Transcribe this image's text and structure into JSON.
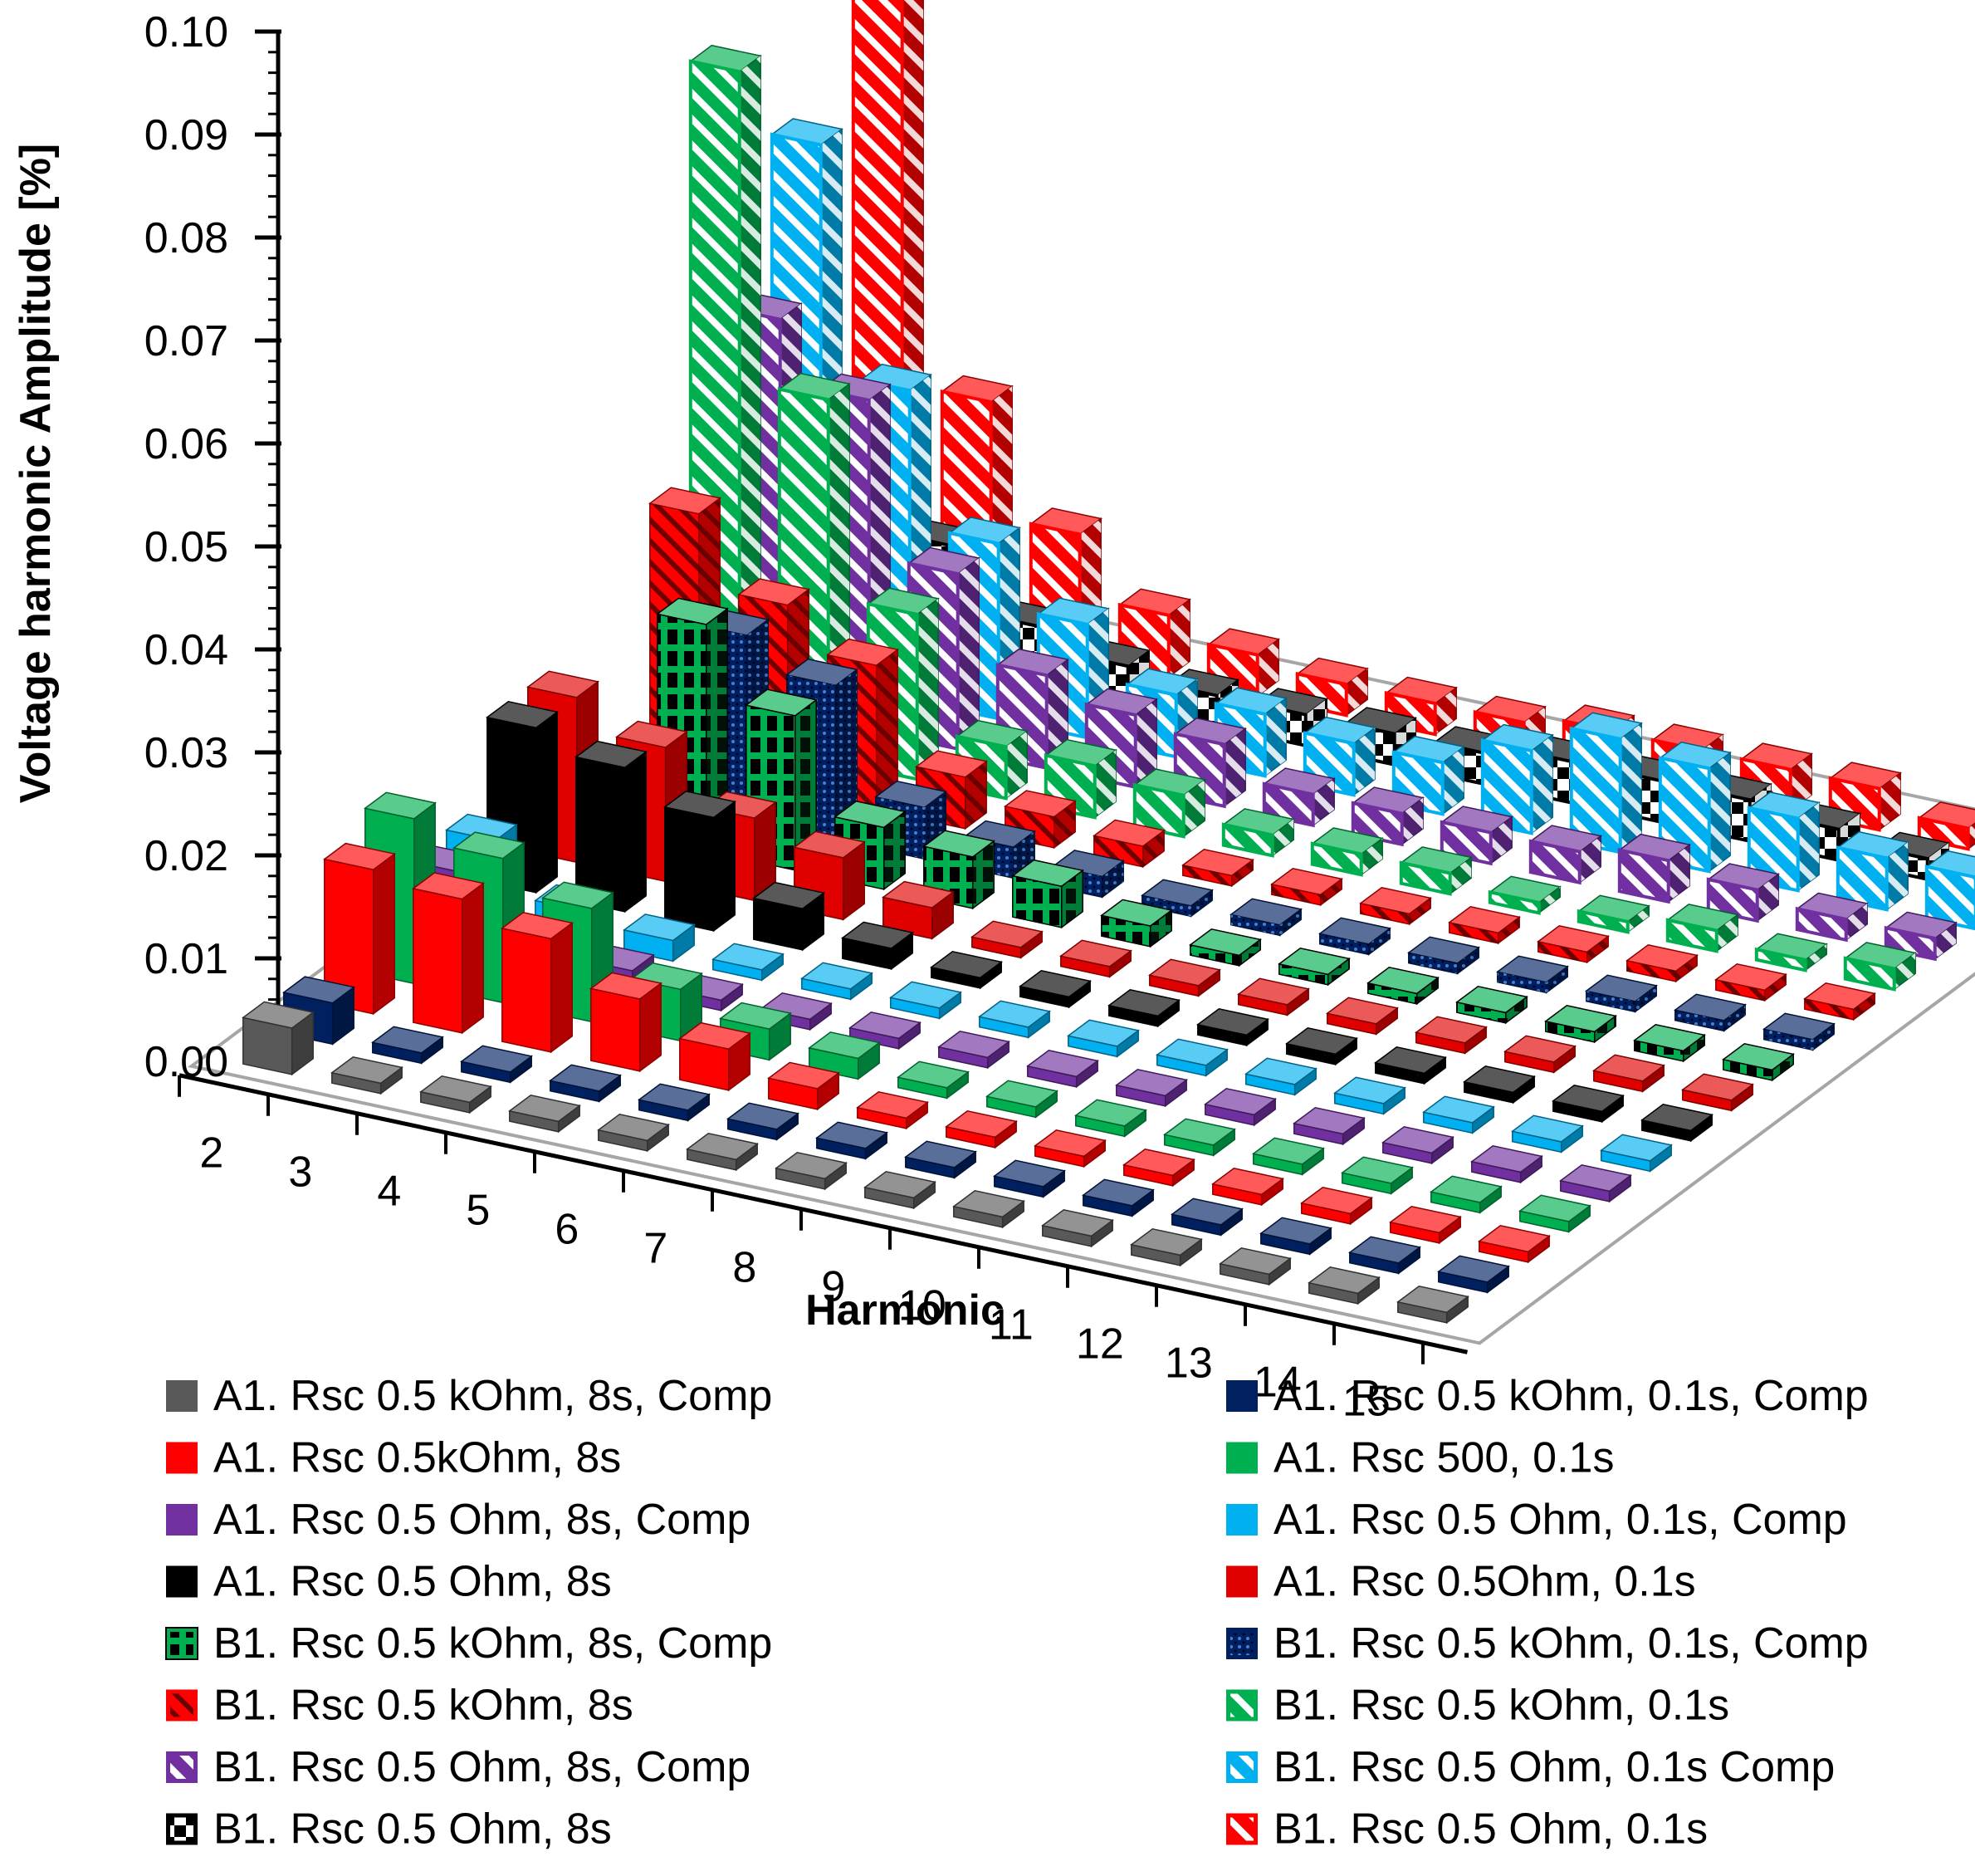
{
  "chart_data": {
    "type": "bar3d",
    "title": "",
    "xlabel": "Harmonic",
    "ylabel": "Voltage harmonic Amplitude [%]",
    "ylim": [
      0,
      0.1
    ],
    "yticks": [
      "0.00",
      "0.01",
      "0.02",
      "0.03",
      "0.04",
      "0.05",
      "0.06",
      "0.07",
      "0.08",
      "0.09",
      "0.10"
    ],
    "categories": [
      "2",
      "3",
      "4",
      "5",
      "6",
      "7",
      "8",
      "9",
      "10",
      "11",
      "12",
      "13",
      "14",
      "15"
    ],
    "series": [
      {
        "name": "A1. Rsc 0.5 kOhm, 8s, Comp",
        "color": "#595959",
        "pattern": "solid",
        "values": [
          0.0045,
          0.001,
          0.001,
          0.001,
          0.001,
          0.001,
          0.001,
          0.001,
          0.001,
          0.001,
          0.001,
          0.001,
          0.001,
          0.001
        ]
      },
      {
        "name": "A1. Rsc 0.5 kOhm, 0.1s, Comp",
        "color": "#002060",
        "pattern": "solid",
        "values": [
          0.004,
          0.001,
          0.001,
          0.001,
          0.001,
          0.001,
          0.001,
          0.001,
          0.001,
          0.001,
          0.001,
          0.001,
          0.001,
          0.001
        ]
      },
      {
        "name": "A1. Rsc 0.5kOhm, 8s",
        "color": "#ff0000",
        "pattern": "solid",
        "values": [
          0.014,
          0.013,
          0.011,
          0.007,
          0.004,
          0.002,
          0.001,
          0.001,
          0.001,
          0.001,
          0.001,
          0.001,
          0.001,
          0.001
        ]
      },
      {
        "name": "A1. Rsc 500, 0.1s",
        "color": "#00b050",
        "pattern": "solid",
        "values": [
          0.016,
          0.014,
          0.011,
          0.005,
          0.003,
          0.002,
          0.001,
          0.001,
          0.001,
          0.001,
          0.001,
          0.001,
          0.001,
          0.001
        ]
      },
      {
        "name": "A1. Rsc 0.5 Ohm, 8s, Comp",
        "color": "#7030a0",
        "pattern": "solid",
        "values": [
          0.008,
          0.003,
          0.002,
          0.001,
          0.001,
          0.001,
          0.001,
          0.001,
          0.001,
          0.001,
          0.001,
          0.001,
          0.001,
          0.001
        ]
      },
      {
        "name": "A1. Rsc 0.5 Ohm, 0.1s, Comp",
        "color": "#00b0f0",
        "pattern": "solid",
        "values": [
          0.008,
          0.003,
          0.002,
          0.001,
          0.001,
          0.001,
          0.001,
          0.001,
          0.001,
          0.001,
          0.001,
          0.001,
          0.001,
          0.001
        ]
      },
      {
        "name": "A1. Rsc 0.5 Ohm, 8s",
        "color": "#000000",
        "pattern": "solid",
        "values": [
          0.016,
          0.014,
          0.011,
          0.004,
          0.002,
          0.001,
          0.001,
          0.001,
          0.001,
          0.001,
          0.001,
          0.001,
          0.001,
          0.001
        ]
      },
      {
        "name": "A1. Rsc 0.5Ohm, 0.1s",
        "color": "#e00000",
        "pattern": "solid",
        "values": [
          0.016,
          0.013,
          0.008,
          0.006,
          0.003,
          0.001,
          0.001,
          0.001,
          0.001,
          0.001,
          0.001,
          0.001,
          0.001,
          0.001
        ]
      },
      {
        "name": "B1. Rsc 0.5 kOhm, 8s, Comp",
        "color": "#00b050",
        "pattern": "hbar-black",
        "values": [
          0.005,
          0.022,
          0.015,
          0.006,
          0.005,
          0.004,
          0.002,
          0.001,
          0.001,
          0.001,
          0.001,
          0.001,
          0.001,
          0.001
        ]
      },
      {
        "name": "B1. Rsc 0.5 kOhm, 0.1s, Comp",
        "color": "#002060",
        "pattern": "dots-blue",
        "values": [
          0.002,
          0.018,
          0.015,
          0.005,
          0.003,
          0.002,
          0.001,
          0.001,
          0.001,
          0.001,
          0.001,
          0.001,
          0.001,
          0.001
        ]
      },
      {
        "name": "B1. Rsc 0.5 kOhm, 8s",
        "color": "#ff0000",
        "pattern": "diag-dark",
        "values": [
          0.025,
          0.018,
          0.014,
          0.005,
          0.003,
          0.002,
          0.001,
          0.001,
          0.001,
          0.001,
          0.001,
          0.001,
          0.001,
          0.001
        ]
      },
      {
        "name": "B1. Rsc 0.5 kOhm, 0.1s",
        "color": "#00b050",
        "pattern": "diag-white",
        "values": [
          0.065,
          0.035,
          0.016,
          0.005,
          0.005,
          0.004,
          0.002,
          0.002,
          0.002,
          0.001,
          0.001,
          0.002,
          0.001,
          0.002
        ]
      },
      {
        "name": "B1. Rsc 0.5 Ohm, 8s, Comp",
        "color": "#7030a0",
        "pattern": "diag-white",
        "values": [
          0.038,
          0.032,
          0.017,
          0.009,
          0.007,
          0.006,
          0.003,
          0.003,
          0.003,
          0.003,
          0.004,
          0.003,
          0.002,
          0.002
        ]
      },
      {
        "name": "B1. Rsc 0.5 Ohm, 0.1s Comp",
        "color": "#00b0f0",
        "pattern": "diag-white",
        "values": [
          0.052,
          0.03,
          0.017,
          0.011,
          0.006,
          0.006,
          0.005,
          0.005,
          0.008,
          0.011,
          0.01,
          0.007,
          0.005,
          0.005
        ]
      },
      {
        "name": "B1. Rsc 0.5 Ohm, 8s",
        "color": "#000000",
        "pattern": "check",
        "values": [
          0.02,
          0.012,
          0.006,
          0.004,
          0.003,
          0.003,
          0.003,
          0.003,
          0.004,
          0.004,
          0.004,
          0.003,
          0.002,
          0.001
        ]
      },
      {
        "name": "B1. Rsc 0.5 Ohm, 0.1s",
        "color": "#ff0000",
        "pattern": "diag-white",
        "values": [
          0.063,
          0.023,
          0.012,
          0.006,
          0.004,
          0.003,
          0.003,
          0.003,
          0.004,
          0.004,
          0.004,
          0.004,
          0.002,
          0.002
        ]
      }
    ]
  }
}
